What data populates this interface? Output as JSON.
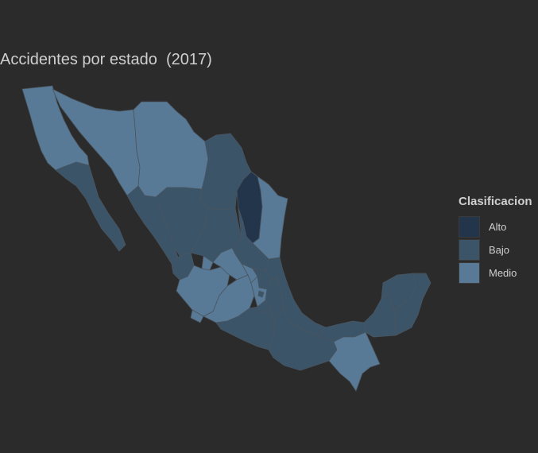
{
  "title": "Accidentes por estado  (2017)",
  "legend": {
    "title": "Clasificacion",
    "items": [
      {
        "label": "Alto",
        "color": "#22354a"
      },
      {
        "label": "Bajo",
        "color": "#3b5468"
      },
      {
        "label": "Medio",
        "color": "#587a96"
      }
    ]
  },
  "colors": {
    "background": "#2b2b2b",
    "border": "#4a5560"
  }
}
